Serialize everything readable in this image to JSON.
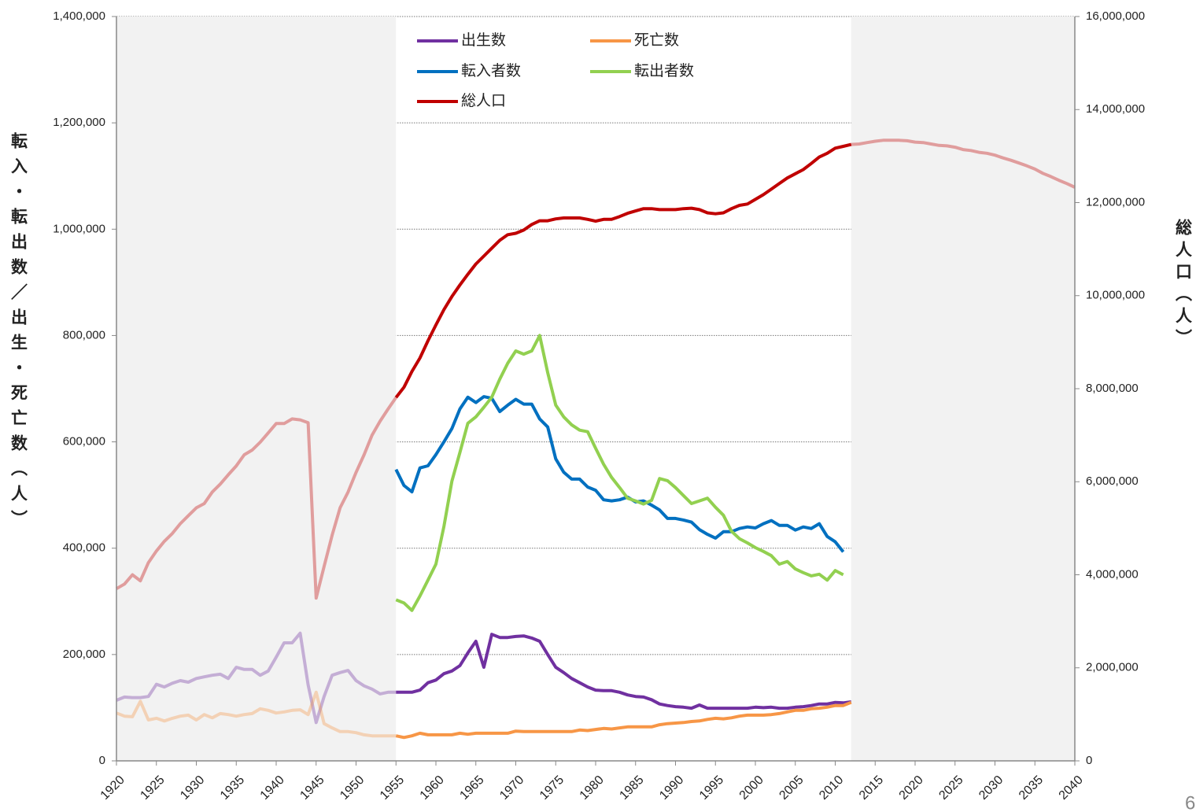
{
  "chart_data": {
    "type": "line",
    "y_label": "転入・転出数／出生・死亡数（人）",
    "y2_label": "総人口（人）",
    "page_number": "6",
    "x": [
      1920,
      1921,
      1922,
      1923,
      1924,
      1925,
      1926,
      1927,
      1928,
      1929,
      1930,
      1931,
      1932,
      1933,
      1934,
      1935,
      1936,
      1937,
      1938,
      1939,
      1940,
      1941,
      1942,
      1943,
      1944,
      1945,
      1946,
      1947,
      1948,
      1949,
      1950,
      1951,
      1952,
      1953,
      1954,
      1955,
      1956,
      1957,
      1958,
      1959,
      1960,
      1961,
      1962,
      1963,
      1964,
      1965,
      1966,
      1967,
      1968,
      1969,
      1970,
      1971,
      1972,
      1973,
      1974,
      1975,
      1976,
      1977,
      1978,
      1979,
      1980,
      1981,
      1982,
      1983,
      1984,
      1985,
      1986,
      1987,
      1988,
      1989,
      1990,
      1991,
      1992,
      1993,
      1994,
      1995,
      1996,
      1997,
      1998,
      1999,
      2000,
      2001,
      2002,
      2003,
      2004,
      2005,
      2006,
      2007,
      2008,
      2009,
      2010,
      2011,
      2012,
      2013,
      2014,
      2015,
      2016,
      2017,
      2018,
      2019,
      2020,
      2021,
      2022,
      2023,
      2024,
      2025,
      2026,
      2027,
      2028,
      2029,
      2030,
      2031,
      2032,
      2033,
      2034,
      2035,
      2036,
      2037,
      2038,
      2039,
      2040
    ],
    "xlim": [
      1920,
      2040
    ],
    "xticks": [
      1920,
      1925,
      1930,
      1935,
      1940,
      1945,
      1950,
      1955,
      1960,
      1965,
      1970,
      1975,
      1980,
      1985,
      1990,
      1995,
      2000,
      2005,
      2010,
      2015,
      2020,
      2025,
      2030,
      2035,
      2040
    ],
    "ylim": [
      0,
      1400000
    ],
    "yticks": [
      0,
      {
        "value": 200000,
        "label": "200,000"
      },
      {
        "value": 400000,
        "label": "400,000"
      },
      {
        "value": 600000,
        "label": "600,000"
      },
      {
        "value": 800000,
        "label": "800,000"
      },
      {
        "value": 1000000,
        "label": "1,000,000"
      },
      {
        "value": 1200000,
        "label": "1,200,000"
      },
      {
        "value": 1400000,
        "label": "1,400,000"
      }
    ],
    "y2lim": [
      0,
      16000000
    ],
    "y2ticks": [
      0,
      {
        "value": 2000000,
        "label": "2,000,000"
      },
      {
        "value": 4000000,
        "label": "4,000,000"
      },
      {
        "value": 6000000,
        "label": "6,000,000"
      },
      {
        "value": 8000000,
        "label": "8,000,000"
      },
      {
        "value": 10000000,
        "label": "10,000,000"
      },
      {
        "value": 12000000,
        "label": "12,000,000"
      },
      {
        "value": 14000000,
        "label": "14,000,000"
      },
      {
        "value": 16000000,
        "label": "16,000,000"
      }
    ],
    "grid": true,
    "shaded_ranges": [
      [
        1920,
        1955
      ],
      [
        2012,
        2040
      ]
    ],
    "legend": "top",
    "series": [
      {
        "name": "出生数",
        "color": "#7030a0",
        "values": [
          114000,
          120000,
          119000,
          119000,
          121000,
          144000,
          139000,
          146000,
          151000,
          148000,
          155000,
          158000,
          161000,
          163000,
          155000,
          176000,
          172000,
          172000,
          161000,
          169000,
          195000,
          222000,
          222000,
          240000,
          143000,
          72000,
          121000,
          161000,
          166000,
          170000,
          151000,
          141000,
          135000,
          126000,
          129000,
          129000,
          129000,
          129000,
          133000,
          147000,
          152000,
          164000,
          169000,
          179000,
          203000,
          225000,
          176000,
          238000,
          232000,
          232000,
          234000,
          235000,
          231000,
          225000,
          200000,
          176000,
          166000,
          155000,
          147000,
          139000,
          133000,
          132000,
          132000,
          129000,
          124000,
          121000,
          120000,
          115000,
          107000,
          104000,
          102000,
          101000,
          99000,
          105000,
          99000,
          99000,
          99000,
          99000,
          99000,
          99000,
          101000,
          100000,
          101000,
          99000,
          99000,
          101000,
          102000,
          104000,
          107000,
          107000,
          110000,
          109000,
          111000,
          null,
          null,
          null,
          null,
          null,
          null,
          null,
          null,
          null,
          null,
          null,
          null,
          null,
          null,
          null,
          null,
          null,
          null,
          null,
          null,
          null,
          null,
          null,
          null,
          null,
          null,
          null,
          null
        ]
      },
      {
        "name": "死亡数",
        "color": "#f79646",
        "values": [
          90000,
          84000,
          83000,
          112000,
          77000,
          80000,
          75000,
          80000,
          84000,
          86000,
          77000,
          87000,
          81000,
          89000,
          87000,
          84000,
          87000,
          89000,
          98000,
          95000,
          90000,
          92000,
          95000,
          96000,
          87000,
          129000,
          70000,
          62000,
          55000,
          55000,
          53000,
          49000,
          47000,
          47000,
          47000,
          47000,
          44000,
          47000,
          52000,
          49000,
          49000,
          49000,
          49000,
          52000,
          50000,
          52000,
          52000,
          52000,
          52000,
          52000,
          56000,
          55000,
          55000,
          55000,
          55000,
          55000,
          55000,
          55000,
          58000,
          57000,
          59000,
          61000,
          60000,
          62000,
          64000,
          64000,
          64000,
          64000,
          68000,
          70000,
          71000,
          72000,
          74000,
          75000,
          78000,
          80000,
          79000,
          81000,
          84000,
          86000,
          86000,
          86000,
          87000,
          89000,
          92000,
          95000,
          95000,
          98000,
          99000,
          101000,
          104000,
          104000,
          110000,
          null,
          null,
          null,
          null,
          null,
          null,
          null,
          null,
          null,
          null,
          null,
          null,
          null,
          null,
          null,
          null,
          null,
          null,
          null,
          null,
          null,
          null,
          null,
          null,
          null,
          null,
          null,
          null
        ]
      },
      {
        "name": "転入者数",
        "color": "#0070c0",
        "values": [
          null,
          null,
          null,
          null,
          null,
          null,
          null,
          null,
          null,
          null,
          null,
          null,
          null,
          null,
          null,
          null,
          null,
          null,
          null,
          null,
          null,
          null,
          null,
          null,
          null,
          null,
          null,
          null,
          null,
          null,
          null,
          null,
          null,
          null,
          null,
          548000,
          518000,
          506000,
          551000,
          555000,
          576000,
          600000,
          625000,
          662000,
          684000,
          674000,
          685000,
          682000,
          657000,
          669000,
          680000,
          671000,
          671000,
          643000,
          628000,
          568000,
          543000,
          530000,
          530000,
          515000,
          509000,
          491000,
          489000,
          491000,
          496000,
          487000,
          489000,
          481000,
          472000,
          456000,
          456000,
          453000,
          449000,
          435000,
          426000,
          419000,
          431000,
          431000,
          437000,
          440000,
          438000,
          446000,
          452000,
          443000,
          443000,
          434000,
          440000,
          437000,
          446000,
          422000,
          412000,
          393000,
          null,
          null,
          null,
          null,
          null,
          null,
          null,
          null,
          null,
          null,
          null,
          null,
          null,
          null,
          null,
          null,
          null,
          null,
          null,
          null,
          null,
          null,
          null,
          null,
          null,
          null,
          null,
          null,
          null
        ]
      },
      {
        "name": "転出者数",
        "color": "#92d050",
        "values": [
          null,
          null,
          null,
          null,
          null,
          null,
          null,
          null,
          null,
          null,
          null,
          null,
          null,
          null,
          null,
          null,
          null,
          null,
          null,
          null,
          null,
          null,
          null,
          null,
          null,
          null,
          null,
          null,
          null,
          null,
          null,
          null,
          null,
          null,
          null,
          303000,
          297000,
          283000,
          310000,
          340000,
          370000,
          441000,
          526000,
          580000,
          635000,
          647000,
          665000,
          684000,
          718000,
          748000,
          771000,
          765000,
          771000,
          800000,
          730000,
          669000,
          647000,
          632000,
          622000,
          619000,
          588000,
          558000,
          533000,
          514000,
          494000,
          489000,
          483000,
          490000,
          531000,
          527000,
          514000,
          499000,
          484000,
          489000,
          494000,
          477000,
          462000,
          432000,
          418000,
          410000,
          401000,
          394000,
          386000,
          370000,
          375000,
          361000,
          354000,
          348000,
          351000,
          340000,
          358000,
          350000,
          null,
          null,
          null,
          null,
          null,
          null,
          null,
          null,
          null,
          null,
          null,
          null,
          null,
          null,
          null,
          null,
          null,
          null,
          null,
          null,
          null,
          null,
          null,
          null,
          null,
          null,
          null,
          null,
          null
        ]
      },
      {
        "name": "総人口",
        "color": "#c00000",
        "axis": "y2",
        "values": [
          3700000,
          3800000,
          4000000,
          3870000,
          4260000,
          4510000,
          4720000,
          4890000,
          5100000,
          5270000,
          5440000,
          5530000,
          5780000,
          5950000,
          6150000,
          6340000,
          6580000,
          6680000,
          6850000,
          7050000,
          7250000,
          7250000,
          7350000,
          7330000,
          7270000,
          3500000,
          4180000,
          4850000,
          5440000,
          5780000,
          6200000,
          6580000,
          7000000,
          7300000,
          7560000,
          7810000,
          8030000,
          8370000,
          8660000,
          9030000,
          9370000,
          9700000,
          9980000,
          10230000,
          10460000,
          10680000,
          10850000,
          11020000,
          11190000,
          11310000,
          11340000,
          11410000,
          11530000,
          11610000,
          11610000,
          11650000,
          11670000,
          11670000,
          11670000,
          11640000,
          11600000,
          11640000,
          11640000,
          11700000,
          11770000,
          11820000,
          11870000,
          11870000,
          11850000,
          11850000,
          11850000,
          11870000,
          11880000,
          11850000,
          11780000,
          11760000,
          11780000,
          11870000,
          11940000,
          11970000,
          12070000,
          12170000,
          12290000,
          12410000,
          12530000,
          12620000,
          12710000,
          12840000,
          12980000,
          13060000,
          13170000,
          13210000,
          13250000,
          13260000,
          13290000,
          13320000,
          13340000,
          13340000,
          13340000,
          13330000,
          13300000,
          13290000,
          13260000,
          13230000,
          13220000,
          13190000,
          13140000,
          13120000,
          13080000,
          13060000,
          13020000,
          12960000,
          12910000,
          12850000,
          12790000,
          12720000,
          12630000,
          12560000,
          12480000,
          12410000,
          12330000
        ]
      }
    ]
  }
}
